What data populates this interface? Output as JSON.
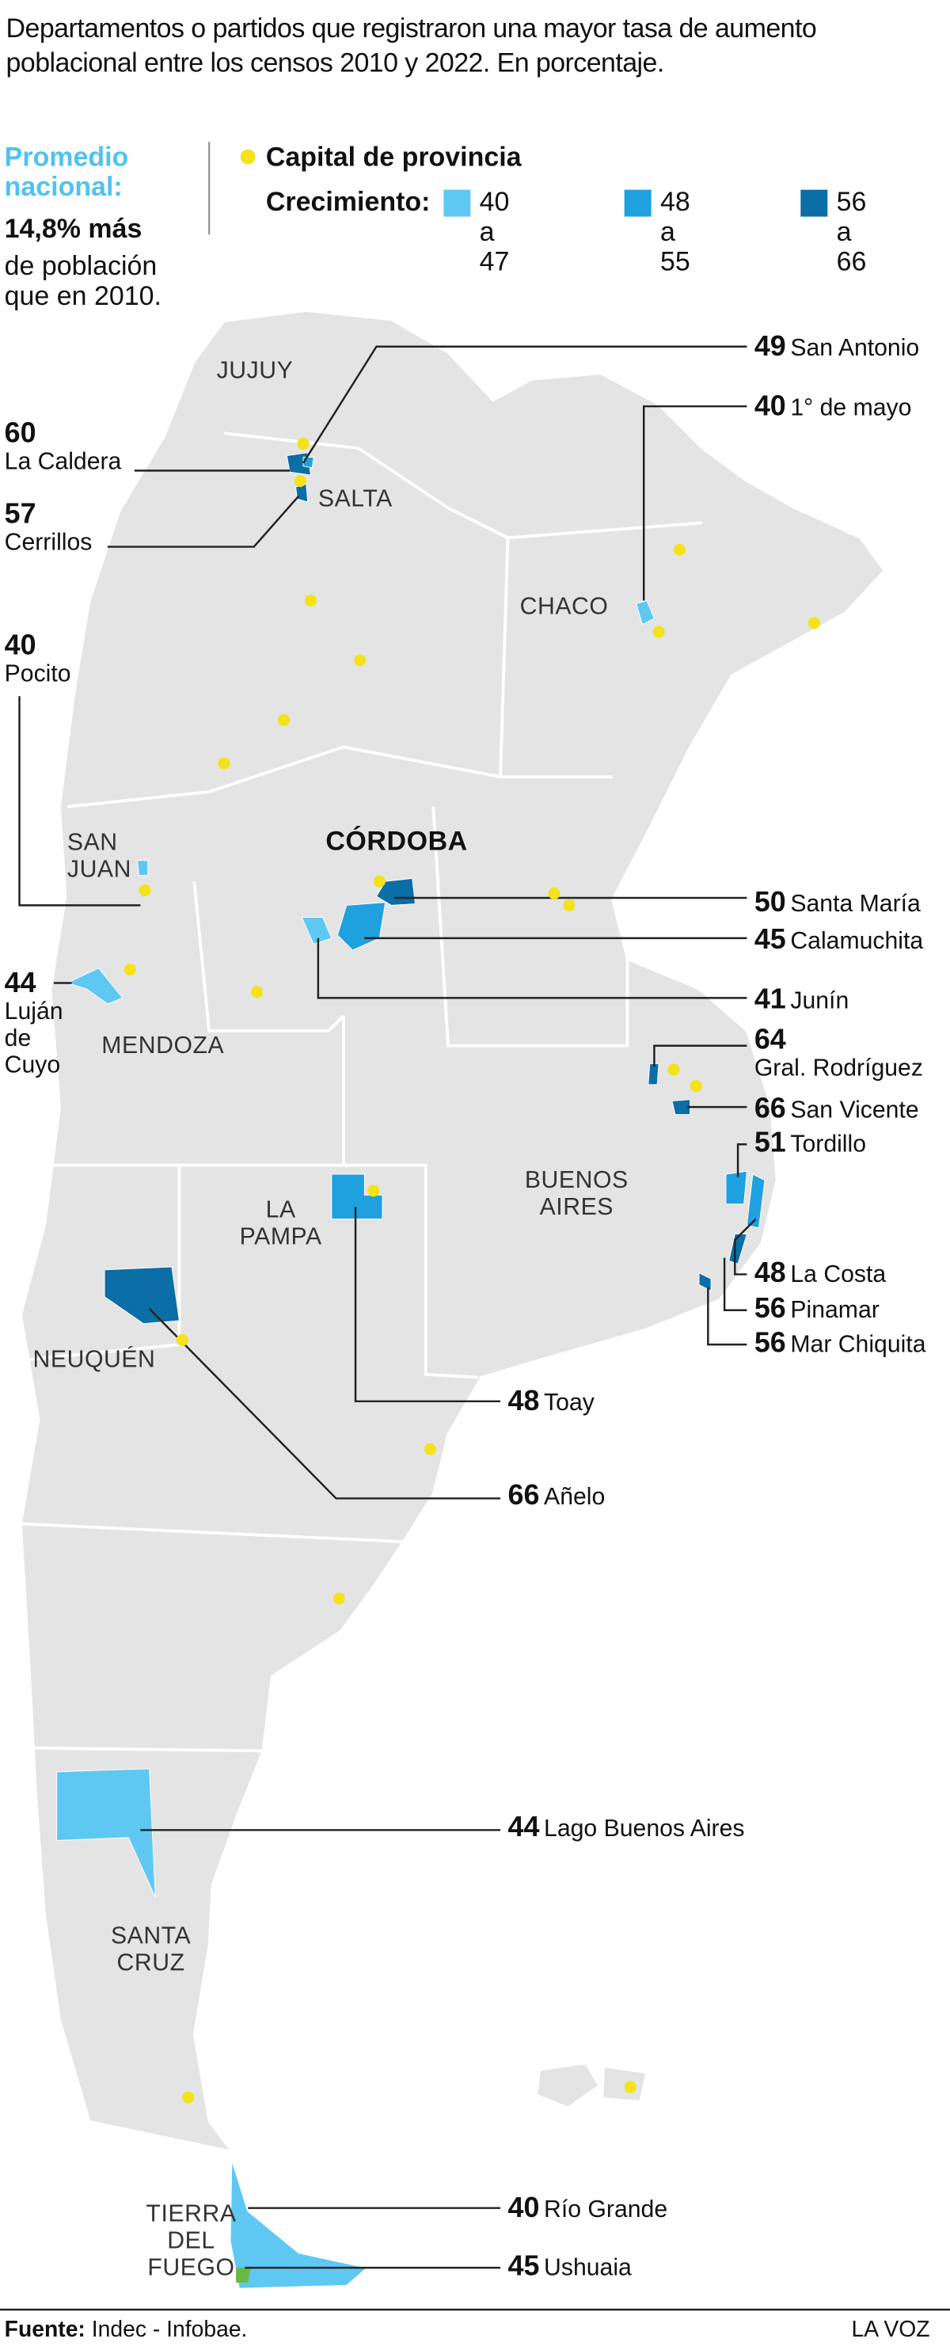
{
  "title": "Departamentos o partidos que registraron una mayor tasa de aumento poblacional entre los censos 2010 y 2022. En porcentaje.",
  "average": {
    "label": "Promedio nacional:",
    "value": "14,8% más",
    "text": "de población que en 2010."
  },
  "legend": {
    "capital": "Capital de provincia",
    "growth_label": "Crecimiento:",
    "classes": [
      {
        "label": "40 a 47",
        "color": "#5ec8f2"
      },
      {
        "label": "48 a 55",
        "color": "#1fa0df"
      },
      {
        "label": "56 a 66",
        "color": "#0b6ea6"
      }
    ]
  },
  "provinces": [
    "JUJUY",
    "SALTA",
    "CHACO",
    "SAN JUAN",
    "CÓRDOBA",
    "MENDOZA",
    "LA PAMPA",
    "BUENOS AIRES",
    "NEUQUÉN",
    "SANTA CRUZ",
    "TIERRA DEL FUEGO"
  ],
  "callouts": [
    {
      "value": "49",
      "name": "San Antonio"
    },
    {
      "value": "40",
      "name": "1° de mayo"
    },
    {
      "value": "60",
      "name": "La Caldera"
    },
    {
      "value": "57",
      "name": "Cerrillos"
    },
    {
      "value": "40",
      "name": "Pocito"
    },
    {
      "value": "50",
      "name": "Santa María"
    },
    {
      "value": "45",
      "name": "Calamuchita"
    },
    {
      "value": "41",
      "name": "Junín"
    },
    {
      "value": "44",
      "name": "Luján de Cuyo"
    },
    {
      "value": "64",
      "name": "Gral. Rodríguez"
    },
    {
      "value": "66",
      "name": "San Vicente"
    },
    {
      "value": "51",
      "name": "Tordillo"
    },
    {
      "value": "48",
      "name": "La Costa"
    },
    {
      "value": "56",
      "name": "Pinamar"
    },
    {
      "value": "56",
      "name": "Mar Chiquita"
    },
    {
      "value": "48",
      "name": "Toay"
    },
    {
      "value": "66",
      "name": "Añelo"
    },
    {
      "value": "44",
      "name": "Lago Buenos Aires"
    },
    {
      "value": "40",
      "name": "Río Grande"
    },
    {
      "value": "45",
      "name": "Ushuaia"
    }
  ],
  "source": {
    "label": "Fuente:",
    "text": "Indec - Infobae."
  },
  "brand": "LA VOZ"
}
